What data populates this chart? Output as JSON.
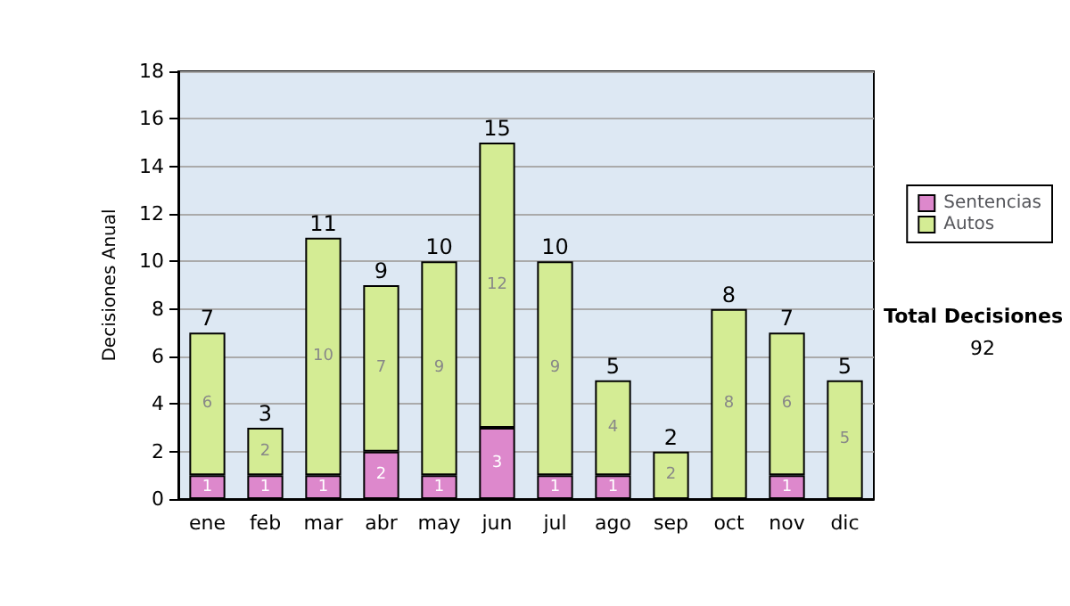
{
  "chart_data": {
    "type": "bar",
    "stacked": true,
    "ylabel": "Decisiones Anual",
    "categories": [
      "ene",
      "feb",
      "mar",
      "abr",
      "may",
      "jun",
      "jul",
      "ago",
      "sep",
      "oct",
      "nov",
      "dic"
    ],
    "series": [
      {
        "name": "Sentencias",
        "color": "#dd88cc",
        "values": [
          1,
          1,
          1,
          2,
          1,
          3,
          1,
          1,
          0,
          0,
          1,
          0
        ],
        "value_labels": [
          "1",
          "1",
          "1",
          "2",
          "1",
          "3",
          "1",
          "1",
          null,
          null,
          "1",
          null
        ]
      },
      {
        "name": "Autos",
        "color": "#d4ec94",
        "values": [
          6,
          2,
          10,
          7,
          9,
          12,
          9,
          4,
          2,
          8,
          6,
          5
        ],
        "value_labels": [
          "6",
          "2",
          "10",
          "7",
          "9",
          "12",
          "9",
          "4",
          "2",
          "8",
          "6",
          "5"
        ]
      }
    ],
    "totals": [
      "7",
      "3",
      "11",
      "9",
      "10",
      "15",
      "10",
      "5",
      "2",
      "8",
      "7",
      "5"
    ],
    "ylim": [
      0,
      18
    ],
    "yticks": [
      0,
      2,
      4,
      6,
      8,
      10,
      12,
      14,
      16,
      18
    ],
    "grid": "y",
    "legend": "right",
    "annotations": [
      "Total Decisiones",
      "92"
    ]
  }
}
